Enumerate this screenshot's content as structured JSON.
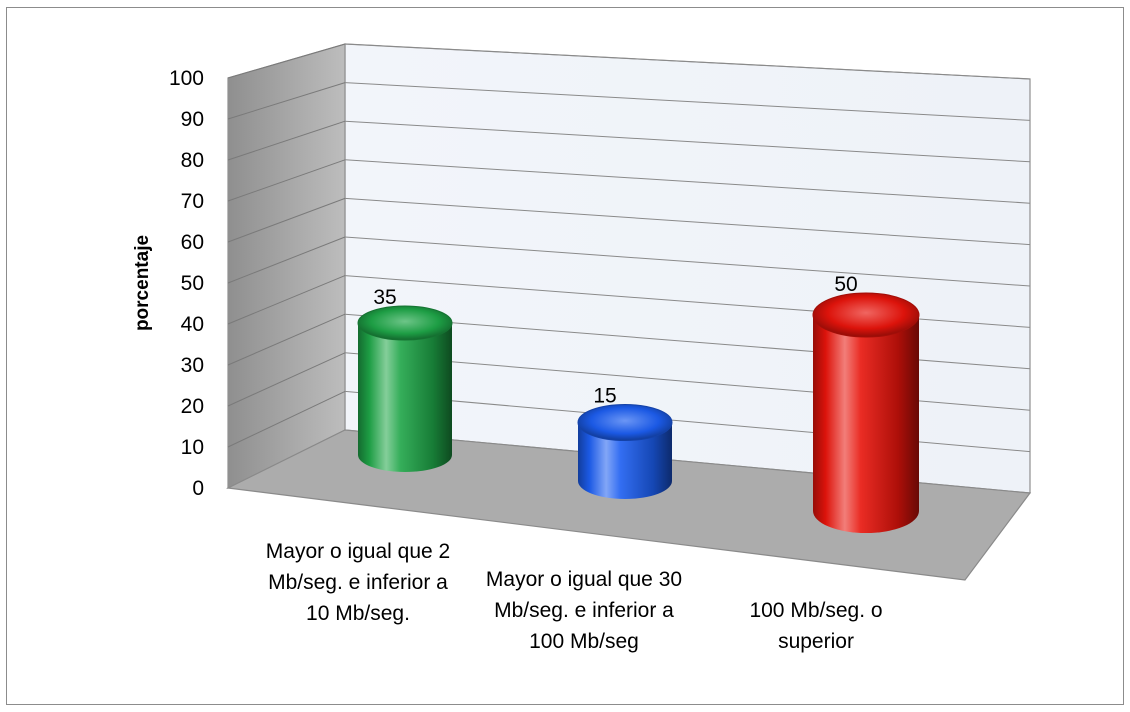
{
  "chart_data": {
    "type": "bar",
    "style": "3d-cylinder",
    "categories": [
      "Mayor o igual que 2 Mb/seg. e inferior a 10 Mb/seg.",
      "Mayor o igual que 30 Mb/seg. e inferior a 100 Mb/seg",
      "100 Mb/seg. o superior"
    ],
    "category_lines": [
      [
        "Mayor o igual que 2",
        "Mb/seg. e inferior a",
        "10 Mb/seg."
      ],
      [
        "Mayor o igual que 30",
        "Mb/seg. e inferior a",
        "100 Mb/seg"
      ],
      [
        "100 Mb/seg. o",
        "superior"
      ]
    ],
    "values": [
      35,
      15,
      50
    ],
    "data_labels": [
      "35",
      "15",
      "50"
    ],
    "colors": [
      "#1fa548",
      "#1c5ef0",
      "#e8140c"
    ],
    "ylabel": "porcentaje",
    "xlabel": "",
    "title": "",
    "ylim": [
      0,
      100
    ],
    "yticks": [
      "0",
      "10",
      "20",
      "30",
      "40",
      "50",
      "60",
      "70",
      "80",
      "90",
      "100"
    ],
    "grid": true,
    "legend": "none"
  }
}
